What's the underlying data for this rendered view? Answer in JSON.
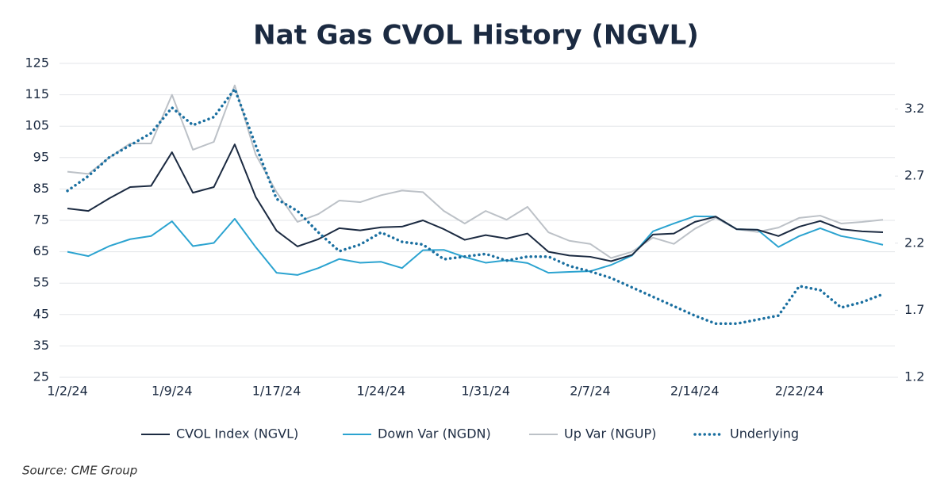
{
  "chart_data": {
    "type": "line",
    "title": "Nat Gas CVOL History (NGVL)",
    "source": "Source: CME Group",
    "categories": [
      "1/2/24",
      null,
      null,
      null,
      null,
      "1/9/24",
      null,
      null,
      null,
      null,
      "1/17/24",
      null,
      null,
      null,
      null,
      "1/24/24",
      null,
      null,
      null,
      null,
      "1/31/24",
      null,
      null,
      null,
      null,
      "2/7/24",
      null,
      null,
      null,
      null,
      "2/14/24",
      null,
      null,
      null,
      null,
      "2/22/24",
      null,
      null,
      null,
      null
    ],
    "ylim": [
      25,
      125
    ],
    "yticks": [
      25,
      35,
      45,
      55,
      65,
      75,
      85,
      95,
      105,
      115,
      125
    ],
    "y2lim": [
      1.2,
      3.54
    ],
    "y2ticks": [
      1.2,
      1.7,
      2.2,
      2.7,
      3.2
    ],
    "grid": true,
    "legend": "bottom",
    "series": [
      {
        "name": "CVOL Index (NGVL)",
        "color": "#1b2a41",
        "style": "solid",
        "values": [
          78.8,
          78,
          82,
          85.6,
          86,
          96.7,
          83.8,
          85.6,
          99.2,
          82.5,
          71.7,
          66.7,
          69,
          72.5,
          71.8,
          72.8,
          73,
          75,
          72.2,
          68.8,
          70.3,
          69.2,
          70.8,
          65,
          63.8,
          63.4,
          62,
          64,
          70.5,
          70.8,
          74.5,
          76.2,
          72.2,
          72,
          70,
          73,
          74.8,
          72.2,
          71.5,
          71.2
        ]
      },
      {
        "name": "Down Var (NGDN)",
        "color": "#2ba3d0",
        "style": "solid",
        "values": [
          65,
          63.6,
          66.8,
          69,
          70,
          74.7,
          66.8,
          67.8,
          75.5,
          66.5,
          58.3,
          57.6,
          59.8,
          62.7,
          61.5,
          61.8,
          59.8,
          65.5,
          65.6,
          63.3,
          61.5,
          62.3,
          61.4,
          58.3,
          58.6,
          58.8,
          60.8,
          63.8,
          71.5,
          74,
          76.3,
          76.2,
          72.2,
          72,
          66.5,
          70,
          72.5,
          70,
          68.8,
          67.2
        ]
      },
      {
        "name": "Up Var (NGUP)",
        "color": "#bcc1c7",
        "style": "solid",
        "values": [
          90.5,
          89.8,
          95,
          99.5,
          99.5,
          115,
          97.5,
          100,
          118,
          96,
          84,
          74.5,
          77,
          81.3,
          80.8,
          83,
          84.5,
          84,
          78,
          74,
          78,
          75.2,
          79.3,
          71.2,
          68.5,
          67.5,
          63,
          65,
          69.5,
          67.5,
          72.3,
          75.8,
          72.2,
          71.3,
          72.7,
          75.8,
          76.5,
          74,
          74.5,
          75.2
        ]
      },
      {
        "name": "Underlying",
        "color": "#1a6fa0",
        "style": "dotted",
        "axis": "y2",
        "values": [
          2.59,
          2.7,
          2.84,
          2.93,
          3.02,
          3.21,
          3.08,
          3.14,
          3.35,
          2.93,
          2.53,
          2.44,
          2.28,
          2.14,
          2.19,
          2.28,
          2.21,
          2.19,
          2.08,
          2.1,
          2.12,
          2.07,
          2.1,
          2.1,
          2.03,
          1.99,
          1.94,
          1.87,
          1.8,
          1.73,
          1.66,
          1.6,
          1.6,
          1.63,
          1.66,
          1.88,
          1.85,
          1.72,
          1.76,
          1.82
        ]
      }
    ]
  }
}
